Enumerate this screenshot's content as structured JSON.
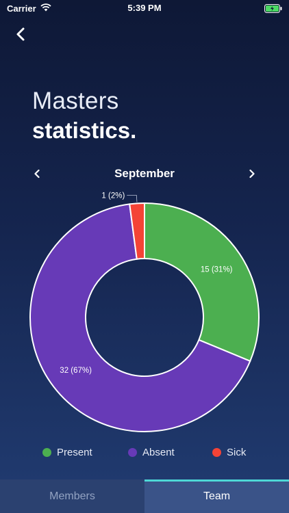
{
  "status_bar": {
    "carrier": "Carrier",
    "time": "5:39 PM"
  },
  "header": {
    "title_light": "Masters",
    "title_bold": "statistics."
  },
  "month_nav": {
    "month": "September"
  },
  "chart_data": {
    "type": "pie",
    "categories": [
      "Present",
      "Absent",
      "Sick"
    ],
    "values": [
      15,
      32,
      1
    ],
    "data_labels": [
      "15 (31%)",
      "32 (67%)",
      "1 (2%)"
    ],
    "colors": [
      "#4caf50",
      "#673ab7",
      "#f44336"
    ],
    "donut": true,
    "legend_position": "bottom"
  },
  "legend": [
    {
      "label": "Present",
      "color": "#4caf50"
    },
    {
      "label": "Absent",
      "color": "#673ab7"
    },
    {
      "label": "Sick",
      "color": "#f44336"
    }
  ],
  "tabs": [
    {
      "label": "Members",
      "active": false
    },
    {
      "label": "Team",
      "active": true
    }
  ]
}
